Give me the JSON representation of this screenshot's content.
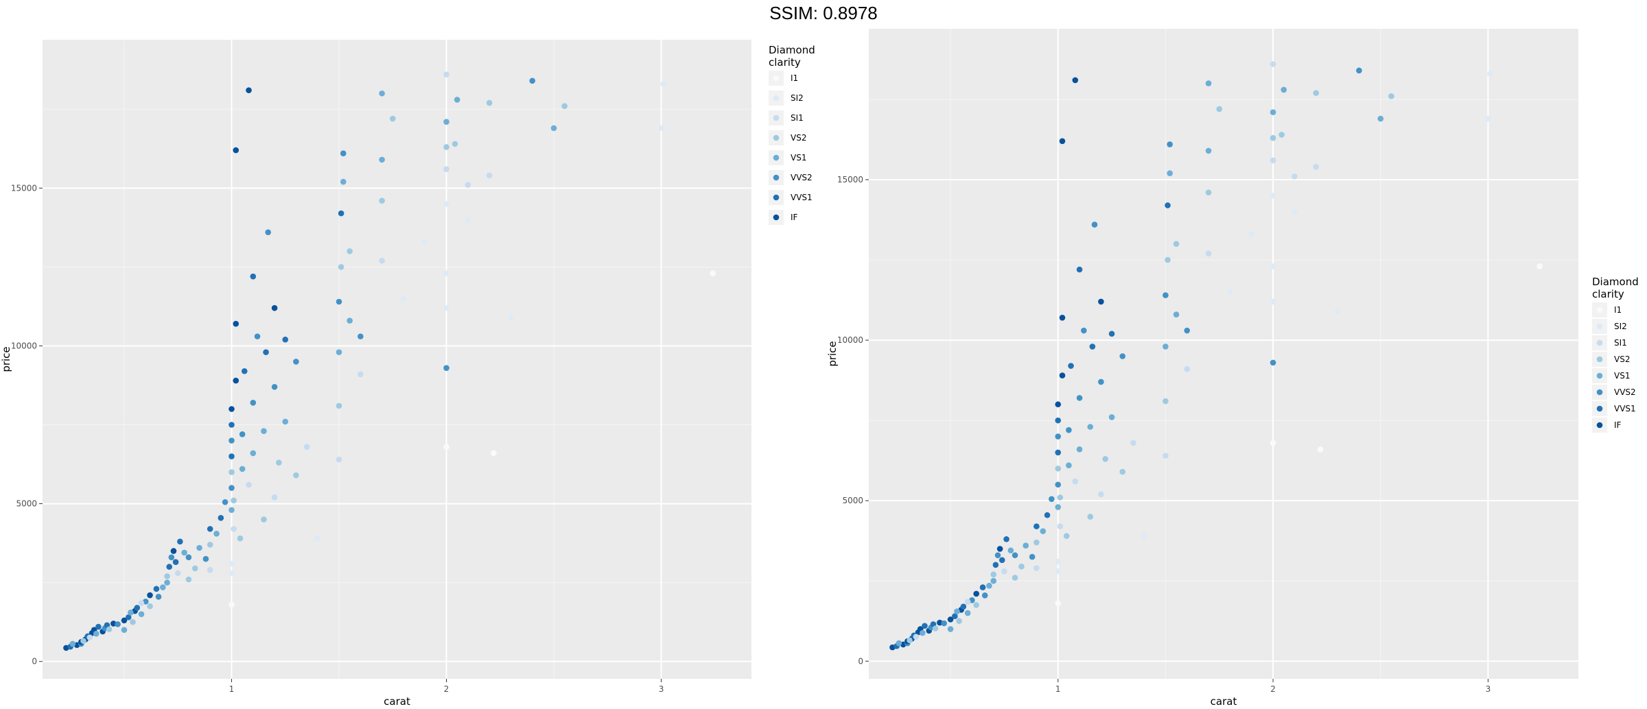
{
  "header": {
    "ssim_label": "SSIM: 0.8978"
  },
  "chart_data": [
    {
      "type": "scatter",
      "xlabel": "carat",
      "ylabel": "price",
      "x_ticks": [
        1,
        2,
        3
      ],
      "y_ticks": [
        0,
        5000,
        10000,
        15000
      ],
      "xlim": [
        0.12,
        3.42
      ],
      "ylim": [
        -550,
        19700
      ],
      "legend": {
        "title_lines": [
          "Diamond",
          "clarity"
        ],
        "position": "right-top"
      },
      "grid": true
    },
    {
      "type": "scatter",
      "xlabel": "carat",
      "ylabel": "price",
      "x_ticks": [
        1,
        2,
        3
      ],
      "y_ticks": [
        0,
        5000,
        10000,
        15000
      ],
      "xlim": [
        0.12,
        3.42
      ],
      "ylim": [
        -550,
        19700
      ],
      "legend": {
        "title_lines": [
          "Diamond",
          "clarity"
        ],
        "position": "right"
      },
      "grid": true
    }
  ],
  "clarity_levels": [
    "I1",
    "SI2",
    "SI1",
    "VS2",
    "VS1",
    "VVS2",
    "VVS1",
    "IF"
  ],
  "clarity_colors": [
    "#f7fbff",
    "#deebf7",
    "#c6dbef",
    "#9ecae1",
    "#6baed6",
    "#4292c6",
    "#2171b5",
    "#08519c"
  ],
  "points": [
    [
      0.23,
      430,
      7
    ],
    [
      0.25,
      470,
      6
    ],
    [
      0.28,
      520,
      7
    ],
    [
      0.3,
      560,
      5
    ],
    [
      0.3,
      620,
      7
    ],
    [
      0.32,
      700,
      7
    ],
    [
      0.33,
      800,
      6
    ],
    [
      0.35,
      900,
      7
    ],
    [
      0.36,
      1000,
      7
    ],
    [
      0.38,
      1100,
      6
    ],
    [
      0.4,
      950,
      7
    ],
    [
      0.41,
      1050,
      5
    ],
    [
      0.42,
      1150,
      6
    ],
    [
      0.45,
      1200,
      7
    ],
    [
      0.5,
      1300,
      7
    ],
    [
      0.5,
      1000,
      4
    ],
    [
      0.52,
      1400,
      6
    ],
    [
      0.54,
      1250,
      3
    ],
    [
      0.55,
      1600,
      7
    ],
    [
      0.56,
      1700,
      6
    ],
    [
      0.58,
      1500,
      4
    ],
    [
      0.6,
      1900,
      5
    ],
    [
      0.62,
      1750,
      3
    ],
    [
      0.62,
      2100,
      7
    ],
    [
      0.65,
      2300,
      6
    ],
    [
      0.7,
      2500,
      4
    ],
    [
      0.7,
      2700,
      3
    ],
    [
      0.71,
      3000,
      6
    ],
    [
      0.72,
      3300,
      5
    ],
    [
      0.73,
      3500,
      7
    ],
    [
      0.75,
      2800,
      2
    ],
    [
      0.76,
      3800,
      6
    ],
    [
      0.8,
      2600,
      3
    ],
    [
      0.8,
      3300,
      5
    ],
    [
      0.85,
      3600,
      4
    ],
    [
      0.9,
      4200,
      6
    ],
    [
      0.9,
      3700,
      3
    ],
    [
      0.9,
      2900,
      2
    ],
    [
      1.0,
      4800,
      4
    ],
    [
      1.0,
      5500,
      5
    ],
    [
      1.0,
      6000,
      3
    ],
    [
      1.0,
      6500,
      6
    ],
    [
      1.0,
      7000,
      5
    ],
    [
      1.0,
      7500,
      6
    ],
    [
      1.0,
      8000,
      7
    ],
    [
      1.0,
      3100,
      1
    ],
    [
      1.0,
      2800,
      1
    ],
    [
      1.0,
      1800,
      0
    ],
    [
      1.01,
      4200,
      2
    ],
    [
      1.01,
      5100,
      3
    ],
    [
      1.02,
      8900,
      7
    ],
    [
      1.02,
      10700,
      7
    ],
    [
      1.04,
      3900,
      3
    ],
    [
      1.05,
      6100,
      4
    ],
    [
      1.05,
      7200,
      5
    ],
    [
      1.06,
      9200,
      6
    ],
    [
      1.08,
      5600,
      2
    ],
    [
      1.1,
      6600,
      4
    ],
    [
      1.1,
      8200,
      5
    ],
    [
      1.1,
      12200,
      6
    ],
    [
      1.12,
      10300,
      5
    ],
    [
      1.15,
      4500,
      3
    ],
    [
      1.15,
      7300,
      4
    ],
    [
      1.16,
      9800,
      6
    ],
    [
      1.2,
      5200,
      2
    ],
    [
      1.2,
      8700,
      5
    ],
    [
      1.2,
      11200,
      7
    ],
    [
      1.22,
      6300,
      3
    ],
    [
      1.25,
      7600,
      4
    ],
    [
      1.25,
      10200,
      6
    ],
    [
      1.3,
      5900,
      3
    ],
    [
      1.3,
      9500,
      5
    ],
    [
      1.35,
      6800,
      2
    ],
    [
      1.4,
      3900,
      1
    ],
    [
      1.5,
      6400,
      2
    ],
    [
      1.5,
      8100,
      3
    ],
    [
      1.5,
      9800,
      4
    ],
    [
      1.5,
      11400,
      5
    ],
    [
      1.51,
      12500,
      3
    ],
    [
      1.51,
      14200,
      6
    ],
    [
      1.52,
      15200,
      4
    ],
    [
      1.52,
      16100,
      5
    ],
    [
      1.55,
      10800,
      4
    ],
    [
      1.55,
      13000,
      3
    ],
    [
      1.6,
      10300,
      5
    ],
    [
      1.6,
      9100,
      2
    ],
    [
      1.7,
      12700,
      2
    ],
    [
      1.7,
      14600,
      3
    ],
    [
      1.7,
      15900,
      4
    ],
    [
      1.7,
      18000,
      4
    ],
    [
      1.75,
      17200,
      3
    ],
    [
      1.8,
      11500,
      1
    ],
    [
      1.9,
      13300,
      1
    ],
    [
      2.0,
      14500,
      1
    ],
    [
      2.0,
      15600,
      2
    ],
    [
      2.0,
      16300,
      3
    ],
    [
      2.0,
      17100,
      4
    ],
    [
      2.0,
      18600,
      2
    ],
    [
      2.0,
      12300,
      1
    ],
    [
      2.0,
      11200,
      1
    ],
    [
      2.0,
      9300,
      5
    ],
    [
      2.0,
      6800,
      0
    ],
    [
      2.04,
      16400,
      3
    ],
    [
      2.05,
      17800,
      4
    ],
    [
      2.1,
      15100,
      2
    ],
    [
      2.1,
      14000,
      1
    ],
    [
      2.2,
      15400,
      2
    ],
    [
      2.2,
      17700,
      3
    ],
    [
      2.22,
      6600,
      0
    ],
    [
      2.3,
      10900,
      1
    ],
    [
      2.4,
      18400,
      5
    ],
    [
      2.5,
      16900,
      4
    ],
    [
      2.55,
      17600,
      3
    ],
    [
      3.01,
      18300,
      1
    ],
    [
      3.0,
      16900,
      1
    ],
    [
      3.24,
      12300,
      0
    ],
    [
      1.08,
      18100,
      7
    ],
    [
      1.02,
      16200,
      7
    ],
    [
      1.17,
      13600,
      5
    ],
    [
      0.26,
      560,
      4
    ],
    [
      0.31,
      650,
      3
    ],
    [
      0.34,
      760,
      2
    ],
    [
      0.37,
      880,
      4
    ],
    [
      0.43,
      1020,
      3
    ],
    [
      0.47,
      1180,
      5
    ],
    [
      0.53,
      1550,
      4
    ],
    [
      0.58,
      1850,
      2
    ],
    [
      0.66,
      2050,
      5
    ],
    [
      0.68,
      2350,
      4
    ],
    [
      0.74,
      3150,
      6
    ],
    [
      0.78,
      3450,
      4
    ],
    [
      0.83,
      2950,
      3
    ],
    [
      0.88,
      3250,
      5
    ],
    [
      0.93,
      4050,
      4
    ],
    [
      0.95,
      4550,
      6
    ],
    [
      0.97,
      5050,
      5
    ]
  ]
}
